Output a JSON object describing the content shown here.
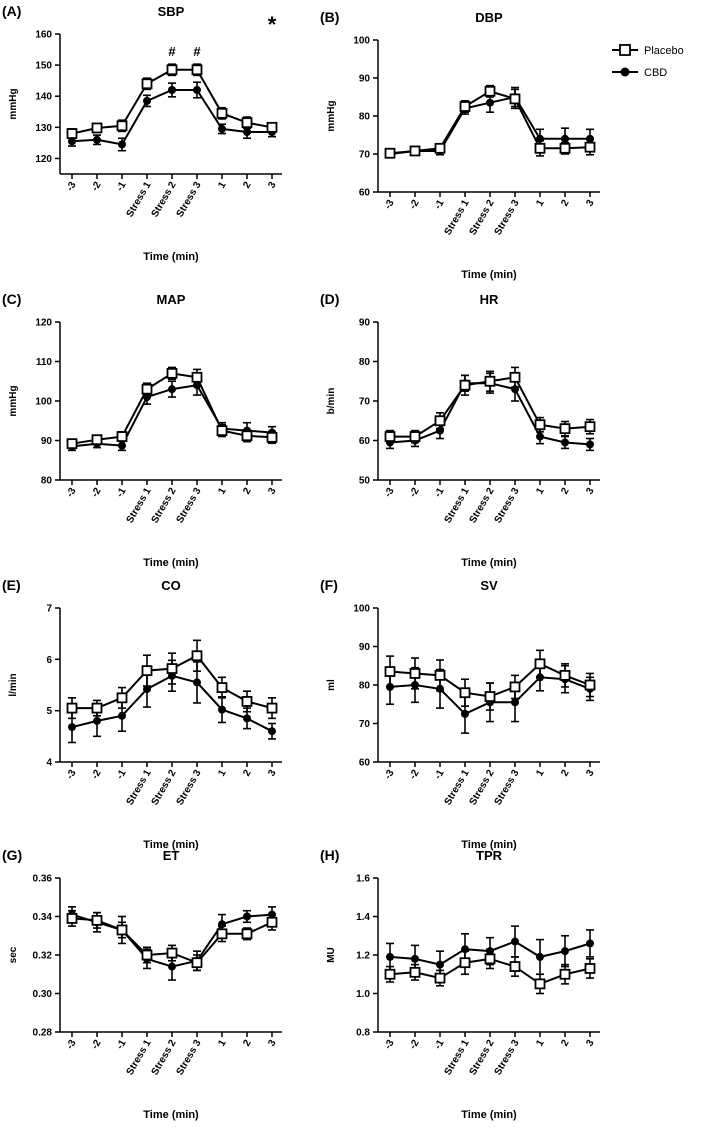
{
  "chart_data": [
    {
      "panel": "(A)",
      "type": "line",
      "title": "SBP",
      "ylabel": "mmHg",
      "xlabel": "Time (min)",
      "ylim": [
        115,
        160
      ],
      "yticks": [
        120,
        130,
        140,
        150,
        160
      ],
      "categories": [
        "-3",
        "-2",
        "-1",
        "Stress 1",
        "Stress 2",
        "Stress 3",
        "1",
        "2",
        "3"
      ],
      "series": [
        {
          "name": "Placebo",
          "values": [
            128,
            129.8,
            130.5,
            144,
            148.5,
            148.5,
            134.5,
            131.5,
            130
          ],
          "err": [
            1.5,
            1,
            1.8,
            1.8,
            1.8,
            1.8,
            1.8,
            1.8,
            1.3
          ]
        },
        {
          "name": "CBD",
          "values": [
            125.5,
            126,
            124.5,
            138.5,
            142,
            142,
            129.5,
            128.5,
            128.5
          ],
          "err": [
            1.5,
            1.5,
            2,
            1.8,
            2.2,
            2.5,
            1.5,
            2,
            1.5
          ]
        }
      ],
      "annotations": [
        {
          "text": "#",
          "category": "Stress 2"
        },
        {
          "text": "#",
          "category": "Stress 3"
        }
      ],
      "corner_mark": "*"
    },
    {
      "panel": "(B)",
      "type": "line",
      "title": "DBP",
      "ylabel": "mmHg",
      "xlabel": "Time (min)",
      "ylim": [
        60,
        100
      ],
      "yticks": [
        60,
        70,
        80,
        90,
        100
      ],
      "categories": [
        "-3",
        "-2",
        "-1",
        "Stress 1",
        "Stress 2",
        "Stress 3",
        "1",
        "2",
        "3"
      ],
      "series": [
        {
          "name": "Placebo",
          "values": [
            70.2,
            70.8,
            71.5,
            82.5,
            86.5,
            84.5,
            71.5,
            71.5,
            71.8
          ],
          "err": [
            0.8,
            0.8,
            1,
            1.5,
            1.5,
            2.5,
            2,
            1.5,
            2
          ]
        },
        {
          "name": "CBD",
          "values": [
            70,
            70.8,
            70.8,
            82,
            83.5,
            85,
            74,
            74,
            74
          ],
          "err": [
            0.8,
            0.8,
            1,
            1.5,
            2.5,
            2.5,
            2.5,
            2.8,
            2.5
          ]
        }
      ]
    },
    {
      "panel": "(C)",
      "type": "line",
      "title": "MAP",
      "ylabel": "mmHg",
      "xlabel": "Time (min)",
      "ylim": [
        80,
        120
      ],
      "yticks": [
        80,
        90,
        100,
        110,
        120
      ],
      "categories": [
        "-3",
        "-2",
        "-1",
        "Stress 1",
        "Stress 2",
        "Stress 3",
        "1",
        "2",
        "3"
      ],
      "series": [
        {
          "name": "Placebo",
          "values": [
            89.2,
            90.2,
            91,
            103,
            107,
            106,
            92.5,
            91.2,
            90.8
          ],
          "err": [
            1,
            1,
            1.2,
            1.5,
            1.5,
            2,
            1.5,
            1.5,
            1.5
          ]
        },
        {
          "name": "CBD",
          "values": [
            88.5,
            89.2,
            88.7,
            101,
            103,
            104,
            93,
            92.5,
            92
          ],
          "err": [
            1,
            1,
            1.2,
            1.8,
            2,
            2.5,
            1.5,
            2,
            1.5
          ]
        }
      ]
    },
    {
      "panel": "(D)",
      "type": "line",
      "title": "HR",
      "ylabel": "b/min",
      "xlabel": "Time (min)",
      "ylim": [
        50,
        90
      ],
      "yticks": [
        50,
        60,
        70,
        80,
        90
      ],
      "categories": [
        "-3",
        "-2",
        "-1",
        "Stress 1",
        "Stress 2",
        "Stress 3",
        "1",
        "2",
        "3"
      ],
      "series": [
        {
          "name": "Placebo",
          "values": [
            61,
            61,
            65,
            74,
            75,
            76,
            64,
            63,
            63.5
          ],
          "err": [
            1.5,
            1.5,
            2,
            2.5,
            2.5,
            2.5,
            1.8,
            1.8,
            1.8
          ]
        },
        {
          "name": "CBD",
          "values": [
            59.5,
            60,
            62.5,
            74.5,
            74.5,
            73,
            61,
            59.5,
            59
          ],
          "err": [
            1.5,
            1.5,
            2,
            2,
            2.5,
            3,
            1.8,
            1.5,
            1.5
          ]
        }
      ]
    },
    {
      "panel": "(E)",
      "type": "line",
      "title": "CO",
      "ylabel": "l/min",
      "xlabel": "Time (min)",
      "ylim": [
        4,
        7
      ],
      "yticks": [
        4,
        5,
        6,
        7
      ],
      "categories": [
        "-3",
        "-2",
        "-1",
        "Stress 1",
        "Stress 2",
        "Stress 3",
        "1",
        "2",
        "3"
      ],
      "series": [
        {
          "name": "Placebo",
          "values": [
            5.05,
            5.05,
            5.25,
            5.78,
            5.82,
            6.07,
            5.45,
            5.18,
            5.05
          ],
          "err": [
            0.2,
            0.15,
            0.2,
            0.3,
            0.3,
            0.3,
            0.2,
            0.2,
            0.2
          ]
        },
        {
          "name": "CBD",
          "values": [
            4.68,
            4.8,
            4.9,
            5.42,
            5.68,
            5.55,
            5.02,
            4.85,
            4.6
          ],
          "err": [
            0.3,
            0.3,
            0.3,
            0.35,
            0.3,
            0.4,
            0.25,
            0.2,
            0.15
          ]
        }
      ]
    },
    {
      "panel": "(F)",
      "type": "line",
      "title": "SV",
      "ylabel": "ml",
      "xlabel": "Time (min)",
      "ylim": [
        60,
        100
      ],
      "yticks": [
        60,
        70,
        80,
        90,
        100
      ],
      "categories": [
        "-3",
        "-2",
        "-1",
        "Stress 1",
        "Stress 2",
        "Stress 3",
        "1",
        "2",
        "3"
      ],
      "series": [
        {
          "name": "Placebo",
          "values": [
            83.5,
            83,
            82.5,
            78,
            77,
            79.5,
            85.5,
            82.5,
            80
          ],
          "err": [
            4,
            4,
            4,
            3.5,
            3.5,
            3,
            3.5,
            3,
            3
          ]
        },
        {
          "name": "CBD",
          "values": [
            79.5,
            80,
            79,
            72.5,
            75.5,
            75.5,
            82,
            81.5,
            79
          ],
          "err": [
            4.5,
            4.5,
            5,
            5,
            5,
            5,
            3.5,
            3.5,
            3
          ]
        }
      ]
    },
    {
      "panel": "(G)",
      "type": "line",
      "title": "ET",
      "ylabel": "sec",
      "xlabel": "Time (min)",
      "ylim": [
        0.28,
        0.36
      ],
      "yticks": [
        0.28,
        0.3,
        0.32,
        0.34,
        0.36
      ],
      "categories": [
        "-3",
        "-2",
        "-1",
        "Stress 1",
        "Stress 2",
        "Stress 3",
        "1",
        "2",
        "3"
      ],
      "series": [
        {
          "name": "Placebo",
          "values": [
            0.339,
            0.338,
            0.333,
            0.32,
            0.321,
            0.316,
            0.331,
            0.331,
            0.337
          ],
          "err": [
            0.004,
            0.004,
            0.004,
            0.004,
            0.004,
            0.004,
            0.004,
            0.003,
            0.004
          ]
        },
        {
          "name": "CBD",
          "values": [
            0.341,
            0.337,
            0.333,
            0.318,
            0.314,
            0.317,
            0.336,
            0.34,
            0.341
          ],
          "err": [
            0.004,
            0.005,
            0.007,
            0.005,
            0.007,
            0.005,
            0.005,
            0.003,
            0.004
          ]
        }
      ]
    },
    {
      "panel": "(H)",
      "type": "line",
      "title": "TPR",
      "ylabel": "MU",
      "xlabel": "Time (min)",
      "ylim": [
        0.8,
        1.6
      ],
      "yticks": [
        0.8,
        1.0,
        1.2,
        1.4,
        1.6
      ],
      "categories": [
        "-3",
        "-2",
        "-1",
        "Stress 1",
        "Stress 2",
        "Stress 3",
        "1",
        "2",
        "3"
      ],
      "series": [
        {
          "name": "Placebo",
          "values": [
            1.1,
            1.11,
            1.08,
            1.16,
            1.18,
            1.14,
            1.05,
            1.1,
            1.13
          ],
          "err": [
            0.04,
            0.04,
            0.04,
            0.06,
            0.05,
            0.05,
            0.05,
            0.05,
            0.05
          ]
        },
        {
          "name": "CBD",
          "values": [
            1.19,
            1.18,
            1.15,
            1.23,
            1.22,
            1.27,
            1.19,
            1.22,
            1.26
          ],
          "err": [
            0.07,
            0.07,
            0.07,
            0.08,
            0.07,
            0.08,
            0.09,
            0.08,
            0.07
          ]
        }
      ]
    }
  ],
  "legend": {
    "entries": [
      {
        "name": "Placebo",
        "marker": "open-square"
      },
      {
        "name": "CBD",
        "marker": "filled-circle"
      }
    ]
  }
}
